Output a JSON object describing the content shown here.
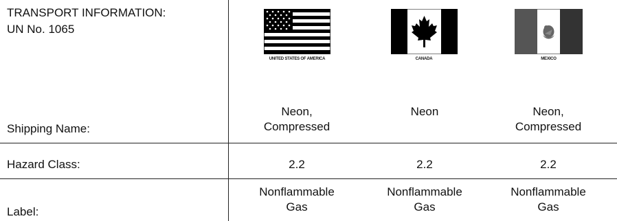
{
  "header": {
    "title": "TRANSPORT INFORMATION:",
    "un_number": "UN No.  1065"
  },
  "flags": [
    {
      "icon": "usa-flag-icon",
      "caption": "UNITED STATES OF AMERICA"
    },
    {
      "icon": "canada-flag-icon",
      "caption": "CANADA"
    },
    {
      "icon": "mexico-flag-icon",
      "caption": "MEXICO"
    }
  ],
  "rows": [
    {
      "label": "Shipping Name:",
      "usa": [
        "Neon,",
        "Compressed"
      ],
      "canada": [
        "Neon"
      ],
      "mexico": [
        "Neon,",
        "Compressed"
      ]
    },
    {
      "label": "Hazard Class:",
      "usa": [
        "2.2"
      ],
      "canada": [
        "2.2"
      ],
      "mexico": [
        "2.2"
      ]
    },
    {
      "label": "Label:",
      "usa": [
        "Nonflammable",
        "Gas"
      ],
      "canada": [
        "Nonflammable",
        "Gas"
      ],
      "mexico": [
        "Nonflammable",
        "Gas"
      ]
    }
  ],
  "colors": {
    "ink": "#111111",
    "rule": "#222222"
  }
}
